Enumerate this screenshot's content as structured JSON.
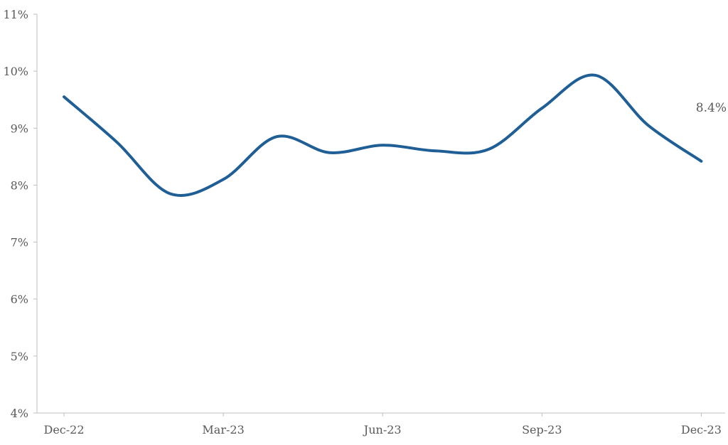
{
  "chart_data": {
    "type": "line",
    "title": "",
    "xlabel": "",
    "ylabel": "",
    "ylim": [
      4,
      11
    ],
    "y_ticks": [
      4,
      5,
      6,
      7,
      8,
      9,
      10,
      11
    ],
    "y_tick_labels": [
      "4%",
      "5%",
      "6%",
      "7%",
      "8%",
      "9%",
      "10%",
      "11%"
    ],
    "x_ticks": [
      "2022-12",
      "2023-03",
      "2023-06",
      "2023-09",
      "2023-12"
    ],
    "x_tick_labels": [
      "Dec-22",
      "Mar-23",
      "Jun-23",
      "Sep-23",
      "Dec-23"
    ],
    "grid": false,
    "legend": "none",
    "series": [
      {
        "color": "#1f5f96",
        "points": [
          {
            "x": "2022-12",
            "y": 9.55
          },
          {
            "x": "2023-01",
            "y": 8.75
          },
          {
            "x": "2023-02",
            "y": 7.85
          },
          {
            "x": "2023-03",
            "y": 8.1
          },
          {
            "x": "2023-04",
            "y": 8.85
          },
          {
            "x": "2023-05",
            "y": 8.57
          },
          {
            "x": "2023-06",
            "y": 8.7
          },
          {
            "x": "2023-07",
            "y": 8.6
          },
          {
            "x": "2023-08",
            "y": 8.63
          },
          {
            "x": "2023-09",
            "y": 9.35
          },
          {
            "x": "2023-10",
            "y": 9.93
          },
          {
            "x": "2023-11",
            "y": 9.05
          },
          {
            "x": "2023-12",
            "y": 8.42
          }
        ]
      }
    ],
    "annotations": [
      {
        "text": "8.4%",
        "x": "2023-12",
        "y": 8.42
      }
    ]
  }
}
